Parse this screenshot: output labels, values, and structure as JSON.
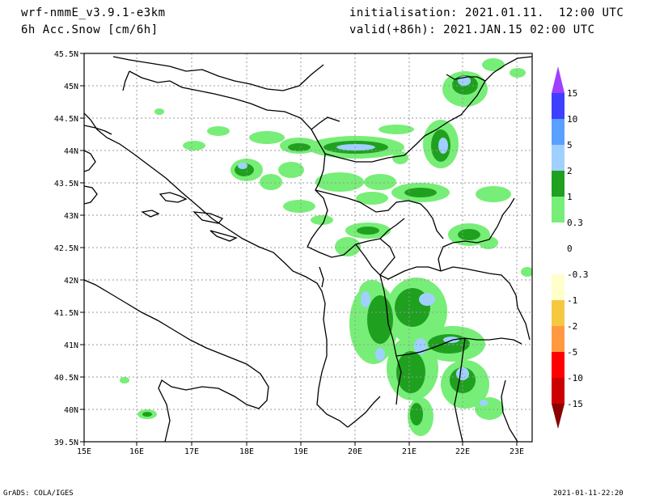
{
  "header": {
    "model": "wrf-nmmE_v3.9.1-e3km",
    "field": "6h Acc.Snow [cm/6h]",
    "init": "initialisation: 2021.01.11.  12:00 UTC",
    "valid": "valid(+86h): 2021.JAN.15 02:00 UTC"
  },
  "footer": {
    "credit": "GrADS: COLA/IGES",
    "timestamp": "2021-01-11-22:20"
  },
  "map": {
    "lat_labels": [
      "45.5N",
      "45N",
      "44.5N",
      "44N",
      "43.5N",
      "43N",
      "42.5N",
      "42N",
      "41.5N",
      "41N",
      "40.5N",
      "40N",
      "39.5N"
    ],
    "lon_labels": [
      "15E",
      "16E",
      "17E",
      "18E",
      "19E",
      "20E",
      "21E",
      "22E",
      "23E"
    ]
  },
  "colorbar": {
    "labels": [
      "15",
      "10",
      "5",
      "2",
      "1",
      "0.3",
      "0",
      "-0.3",
      "-1",
      "-2",
      "-5",
      "-10",
      "-15"
    ],
    "colors": {
      "top_arrow": "#a040ff",
      "c10_15": "#3f3fff",
      "c5_10": "#5aa0ff",
      "c2_5": "#a0d0ff",
      "c1_2": "#1fa01f",
      "c03_1": "#77ee77",
      "neutral": "#ffffff",
      "m03": "#ffffcc",
      "m1": "#f5c842",
      "m2": "#ff9940",
      "m5": "#ff0000",
      "m10": "#cc0000",
      "bottom_arrow": "#8b0000"
    }
  }
}
